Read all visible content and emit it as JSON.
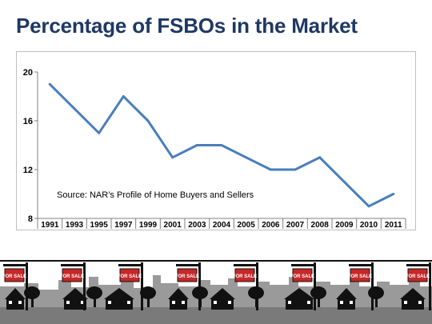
{
  "title": "Percentage of FSBOs in the Market",
  "banner": {
    "sign_label": "FOR SALE"
  },
  "chart_data": {
    "type": "line",
    "title": "",
    "xlabel": "",
    "ylabel": "",
    "categories": [
      "1991",
      "1993",
      "1995",
      "1997",
      "1999",
      "2001",
      "2003",
      "2004",
      "2005",
      "2006",
      "2007",
      "2008",
      "2009",
      "2010",
      "2011"
    ],
    "series": [
      {
        "values": [
          19,
          17,
          15,
          18,
          16,
          13,
          14,
          14,
          13,
          12,
          12,
          13,
          11,
          9,
          10
        ]
      }
    ],
    "ylim": [
      8,
      20
    ],
    "yticks": [
      8,
      12,
      16,
      20
    ],
    "grid": false,
    "line_color": "#4a7ebb",
    "annotation": "Source: NAR’s Profile of Home Buyers and Sellers"
  }
}
